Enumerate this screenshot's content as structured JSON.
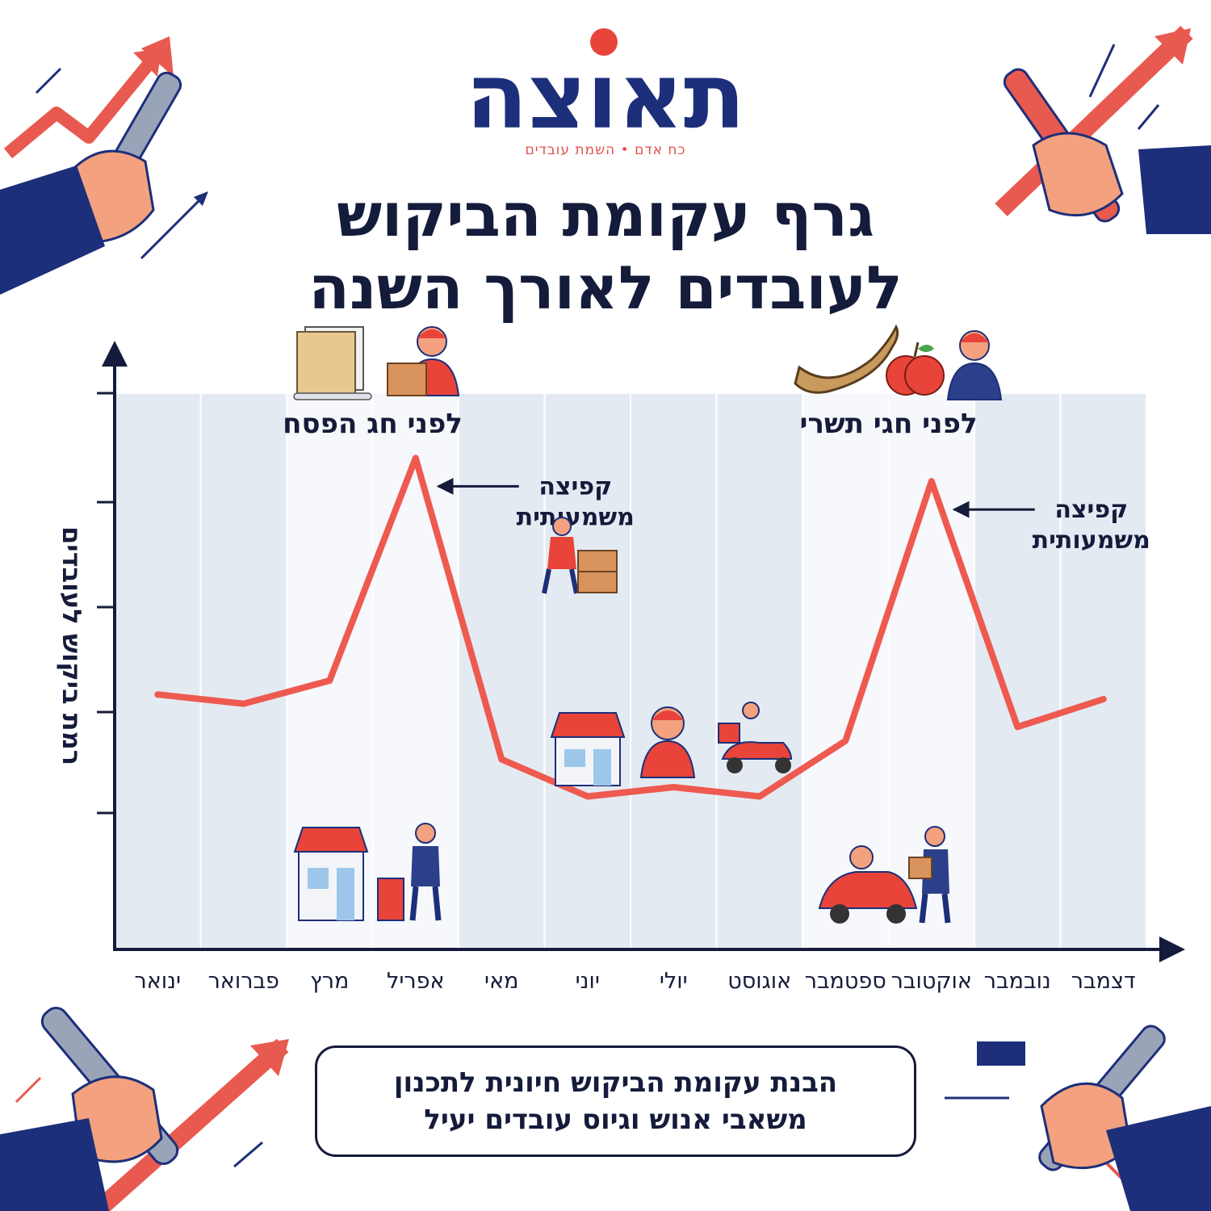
{
  "brand": {
    "logo_text": "תאוצה",
    "tagline": "כח אדם • השמת עובדים",
    "colors": {
      "navy": "#1d2f7a",
      "red": "#e0524a"
    }
  },
  "title_lines": [
    "גרף עקומת הביקוש",
    "לעובדים לאורך השנה"
  ],
  "chart_data": {
    "type": "line",
    "title": "גרף עקומת הביקוש לעובדים לאורך השנה",
    "ylabel": "רמת ביקוש לעובדים",
    "xlabel": "",
    "categories": [
      "ינואר",
      "פברואר",
      "מרץ",
      "אפריל",
      "מאי",
      "יוני",
      "יולי",
      "אוגוסט",
      "ספטמבר",
      "אוקטובר",
      "נובמבר",
      "דצמבר"
    ],
    "series": [
      {
        "values": [
          35,
          33,
          38,
          86,
          21,
          13,
          15,
          13,
          25,
          81,
          28,
          34
        ],
        "color": "#ee5a4f"
      }
    ],
    "ylim": [
      -20,
      100
    ],
    "grid": false,
    "highlight_bands": [
      {
        "from": "מרץ",
        "to": "אפריל",
        "label": "לפני חג הפסח"
      },
      {
        "from": "ספטמבר",
        "to": "אוקטובר",
        "label": "לפני חגי תשרי"
      }
    ],
    "annotations": [
      {
        "text_lines": [
          "קפיצה",
          "משמעותית"
        ],
        "points_to": "אפריל"
      },
      {
        "text_lines": [
          "קפיצה",
          "משמעותית"
        ],
        "points_to": "אוקטובר"
      }
    ]
  },
  "icons": [
    "matzah-icon",
    "worker-with-box-icon",
    "shofar-icon",
    "apple-icon",
    "worker-icon",
    "worker-carrying-boxes-icon",
    "shop-icon",
    "cashier-icon",
    "delivery-scooter-icon",
    "shop-worker-icon",
    "car-driver-icon",
    "delivery-worker-icon",
    "hand-wrench-arrow-icon"
  ],
  "footer": {
    "lines": [
      "הבנת עקומת הביקוש חיונית לתכנון",
      "משאבי אנוש וגיוס עובדים יעיל"
    ]
  }
}
